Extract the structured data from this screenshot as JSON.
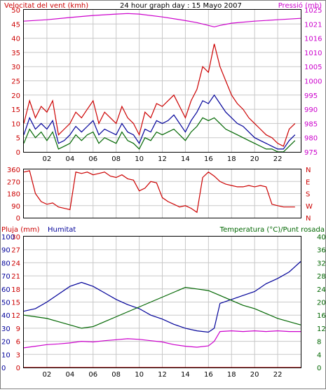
{
  "chart_data": [
    {
      "type": "line",
      "title": "24 hour graph day : 15 Mayo 2007",
      "left_axis_label": "Velocitat del vent (kmh)",
      "right_axis_label": "Pressió (mb)",
      "x_ticks": [
        "02",
        "04",
        "06",
        "08",
        "10",
        "12",
        "14",
        "16",
        "18",
        "20",
        "22"
      ],
      "xlim": [
        0,
        24
      ],
      "ylim_left": [
        0,
        50
      ],
      "ylim_right": [
        975,
        1025
      ],
      "left_ticks": [
        "0",
        "5",
        "10",
        "15",
        "20",
        "25",
        "30",
        "35",
        "40",
        "45",
        "50"
      ],
      "right_ticks": [
        "975",
        "980",
        "985",
        "990",
        "995",
        "1000",
        "1005",
        "1010",
        "1016",
        "1021",
        "1025"
      ],
      "grid": true,
      "series": [
        {
          "axis": "right",
          "color": "#cc00cc",
          "x": [
            0,
            2,
            4,
            6,
            8,
            9,
            10,
            12,
            14,
            15,
            16,
            16.5,
            17,
            18,
            20,
            22,
            24
          ],
          "values": [
            1021,
            1021.5,
            1022.3,
            1023,
            1023.5,
            1023.7,
            1023.5,
            1022.5,
            1021.2,
            1020.5,
            1019.5,
            1019,
            1019.5,
            1020.3,
            1021,
            1021.5,
            1022
          ]
        },
        {
          "axis": "left",
          "color": "#cc0000",
          "x": [
            0,
            0.5,
            1,
            1.5,
            2,
            2.5,
            3,
            3.5,
            4,
            4.5,
            5,
            5.5,
            6,
            6.5,
            7,
            7.5,
            8,
            8.5,
            9,
            9.5,
            10,
            10.5,
            11,
            11.5,
            12,
            12.5,
            13,
            13.5,
            14,
            14.5,
            15,
            15.5,
            16,
            16.5,
            17,
            17.5,
            18,
            18.5,
            19,
            19.5,
            20,
            20.5,
            21,
            21.5,
            22,
            22.5,
            23,
            23.5
          ],
          "values": [
            10,
            18,
            12,
            16,
            14,
            18,
            6,
            8,
            10,
            14,
            12,
            15,
            18,
            10,
            14,
            12,
            10,
            16,
            12,
            10,
            6,
            14,
            12,
            17,
            16,
            18,
            20,
            16,
            12,
            18,
            22,
            30,
            28,
            38,
            30,
            25,
            20,
            17,
            15,
            12,
            10,
            8,
            6,
            5,
            3,
            2,
            8,
            10
          ]
        },
        {
          "axis": "left",
          "color": "#000099",
          "x": [
            0,
            0.5,
            1,
            1.5,
            2,
            2.5,
            3,
            3.5,
            4,
            4.5,
            5,
            5.5,
            6,
            6.5,
            7,
            7.5,
            8,
            8.5,
            9,
            9.5,
            10,
            10.5,
            11,
            11.5,
            12,
            12.5,
            13,
            13.5,
            14,
            14.5,
            15,
            15.5,
            16,
            16.5,
            17,
            17.5,
            18,
            18.5,
            19,
            19.5,
            20,
            20.5,
            21,
            21.5,
            22,
            22.5,
            23,
            23.5
          ],
          "values": [
            6,
            12,
            8,
            10,
            8,
            11,
            3,
            4,
            6,
            9,
            7,
            9,
            11,
            6,
            8,
            7,
            6,
            10,
            7,
            6,
            3,
            8,
            7,
            11,
            10,
            11,
            13,
            10,
            7,
            11,
            14,
            18,
            17,
            20,
            17,
            14,
            12,
            10,
            9,
            7,
            5,
            4,
            3,
            2,
            1,
            1,
            4,
            6
          ]
        },
        {
          "axis": "left",
          "color": "#006600",
          "x": [
            0,
            0.5,
            1,
            1.5,
            2,
            2.5,
            3,
            3.5,
            4,
            4.5,
            5,
            5.5,
            6,
            6.5,
            7,
            7.5,
            8,
            8.5,
            9,
            9.5,
            10,
            10.5,
            11,
            11.5,
            12,
            12.5,
            13,
            13.5,
            14,
            14.5,
            15,
            15.5,
            16,
            16.5,
            17,
            17.5,
            18,
            18.5,
            19,
            19.5,
            20,
            20.5,
            21,
            21.5,
            22,
            22.5,
            23,
            23.5
          ],
          "values": [
            3,
            8,
            5,
            7,
            4,
            7,
            1,
            2,
            3,
            6,
            4,
            6,
            7,
            3,
            5,
            4,
            3,
            7,
            4,
            3,
            1,
            5,
            4,
            7,
            6,
            7,
            8,
            6,
            4,
            7,
            9,
            12,
            11,
            12,
            10,
            8,
            7,
            6,
            5,
            4,
            3,
            2,
            1,
            1,
            0,
            0,
            2,
            4
          ]
        }
      ]
    },
    {
      "type": "line",
      "xlim": [
        0,
        24
      ],
      "ylim": [
        0,
        360
      ],
      "left_ticks": [
        "0",
        "90",
        "180",
        "270",
        "360"
      ],
      "right_ticks": [
        "N",
        "W",
        "S",
        "E",
        "N"
      ],
      "grid": true,
      "series": [
        {
          "color": "#cc0000",
          "x": [
            0,
            0.5,
            1,
            1.5,
            2,
            2.5,
            3,
            3.5,
            4,
            4.5,
            5,
            5.5,
            6,
            6.5,
            7,
            7.5,
            8,
            8.5,
            9,
            9.5,
            10,
            10.5,
            11,
            11.5,
            12,
            12.5,
            13,
            13.5,
            14,
            14.5,
            15,
            15.5,
            16,
            16.5,
            17,
            17.5,
            18,
            18.5,
            19,
            19.5,
            20,
            20.5,
            21,
            21.5,
            22,
            22.5,
            23,
            23.5
          ],
          "values": [
            340,
            350,
            180,
            120,
            100,
            110,
            80,
            70,
            60,
            340,
            330,
            340,
            320,
            330,
            340,
            310,
            300,
            320,
            290,
            280,
            200,
            220,
            270,
            260,
            150,
            120,
            100,
            80,
            90,
            70,
            40,
            300,
            340,
            310,
            270,
            250,
            240,
            230,
            230,
            240,
            230,
            240,
            230,
            100,
            90,
            80,
            80,
            80
          ]
        }
      ]
    },
    {
      "type": "line",
      "left_axis_labels": [
        "Pluja (mm)",
        "Humitat"
      ],
      "right_axis_label": "Temperatura (°C)/Punt rosada",
      "x_ticks": [
        "02",
        "04",
        "06",
        "08",
        "10",
        "12",
        "14",
        "16",
        "18",
        "20",
        "22"
      ],
      "xlim": [
        0,
        24
      ],
      "rain_ticks": [
        "0",
        "3",
        "6",
        "9",
        "12",
        "15",
        "18",
        "21",
        "24",
        "27",
        "30"
      ],
      "humidity_ticks": [
        "0",
        "10",
        "20",
        "30",
        "40",
        "50",
        "60",
        "70",
        "80",
        "90",
        "100"
      ],
      "right_ticks": [
        "0",
        "4",
        "8",
        "12",
        "16",
        "20",
        "24",
        "28",
        "32",
        "36",
        "40"
      ],
      "ylim_humidity": [
        0,
        100
      ],
      "ylim_temperature": [
        0,
        40
      ],
      "grid": true,
      "series": [
        {
          "name": "Humitat",
          "color": "#000099",
          "axis": "humidity",
          "x": [
            0,
            1,
            2,
            3,
            4,
            5,
            6,
            7,
            8,
            9,
            10,
            11,
            12,
            13,
            14,
            15,
            16,
            16.5,
            17,
            18,
            19,
            20,
            21,
            22,
            23,
            24
          ],
          "values": [
            43,
            45,
            50,
            56,
            62,
            65,
            62,
            57,
            52,
            48,
            45,
            40,
            37,
            33,
            30,
            28,
            27,
            30,
            49,
            52,
            55,
            58,
            64,
            68,
            73,
            81
          ]
        },
        {
          "name": "Temperatura",
          "color": "#006600",
          "axis": "temperature",
          "x": [
            0,
            1,
            2,
            3,
            4,
            5,
            6,
            7,
            8,
            9,
            10,
            11,
            12,
            13,
            14,
            15,
            16,
            17,
            18,
            19,
            20,
            21,
            22,
            23,
            24
          ],
          "values": [
            16,
            15.5,
            15,
            14,
            13,
            12,
            12.5,
            14,
            15.5,
            17,
            18.5,
            20,
            21.5,
            23,
            24.5,
            24,
            23.5,
            22,
            20.5,
            19,
            18,
            16.5,
            15,
            14,
            13
          ]
        },
        {
          "name": "Punt rosada",
          "color": "#cc00cc",
          "axis": "temperature",
          "x": [
            0,
            1,
            2,
            3,
            4,
            5,
            6,
            7,
            8,
            9,
            10,
            11,
            12,
            13,
            14,
            15,
            16,
            16.5,
            17,
            18,
            19,
            20,
            21,
            22,
            23,
            24
          ],
          "values": [
            6,
            6.5,
            7,
            7.2,
            7.5,
            8,
            7.8,
            8.2,
            8.5,
            8.8,
            8.6,
            8.2,
            7.8,
            7,
            6.5,
            6.2,
            6.6,
            8,
            11,
            11.2,
            11,
            11.2,
            11,
            11.2,
            11,
            11
          ]
        },
        {
          "name": "Pluja",
          "color": "#cc0000",
          "axis": "rain",
          "x": [
            0,
            24
          ],
          "values": [
            0,
            0
          ]
        }
      ]
    }
  ],
  "colors": {
    "wind": "#cc0000",
    "pressure": "#cc00cc",
    "humidity": "#000099",
    "temperature": "#006600",
    "grid": "#c8c8c8",
    "frame": "#000000"
  }
}
